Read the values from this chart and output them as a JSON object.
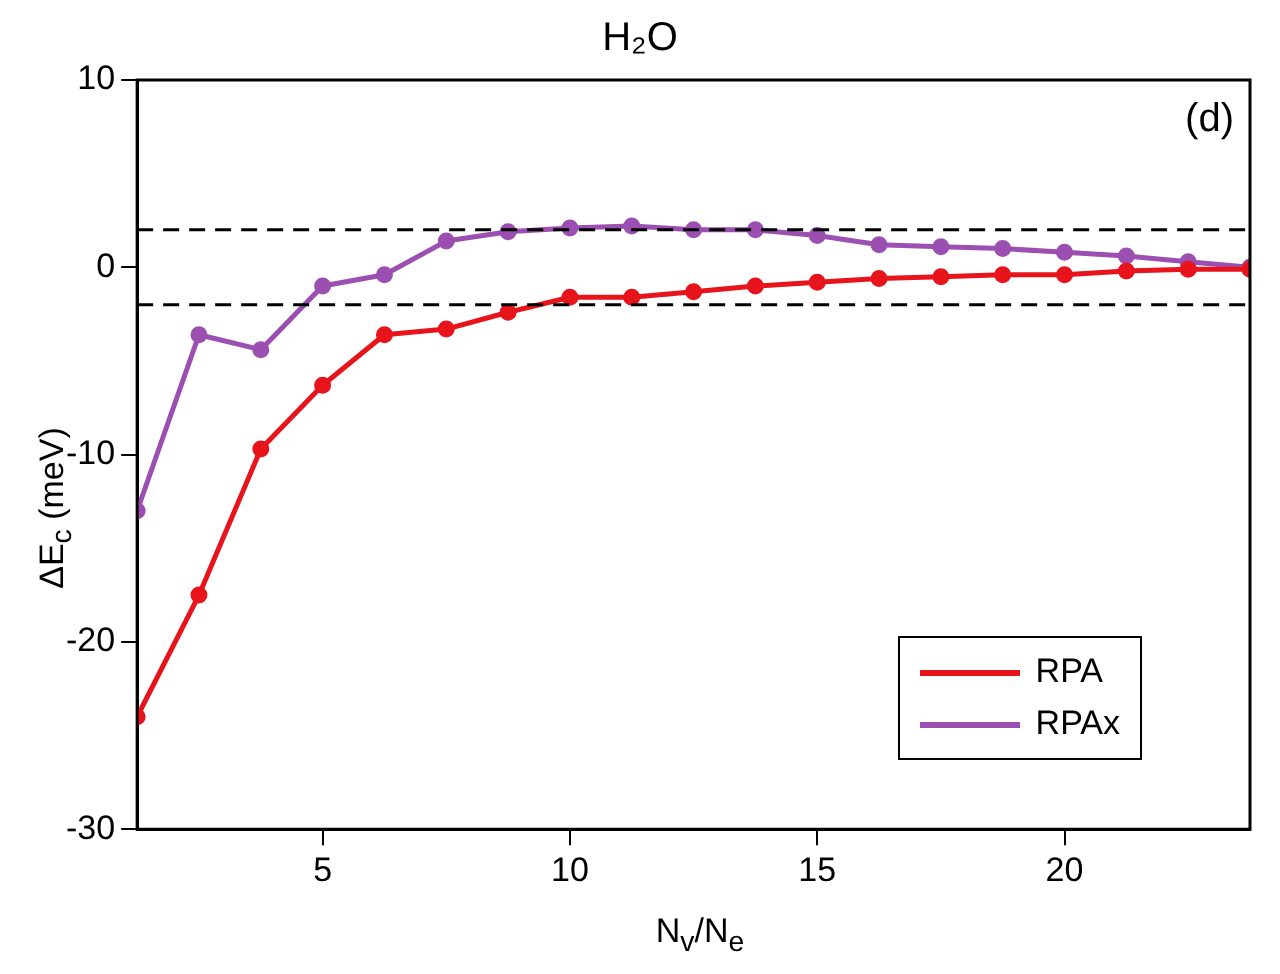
{
  "chart_data": {
    "type": "line",
    "title": "H₂O",
    "xlabel": "N$_{v}$/N$_{e}$",
    "ylabel": "ΔE$_{c}$ (meV)",
    "x": [
      1.25,
      2.5,
      3.75,
      5,
      6.25,
      7.5,
      8.75,
      10,
      11.25,
      12.5,
      13.75,
      15,
      16.25,
      17.5,
      18.75,
      20,
      21.25,
      22.5,
      23.75
    ],
    "series": [
      {
        "name": "RPA",
        "color": "#e8141c",
        "values": [
          -24,
          -17.5,
          -9.7,
          -6.3,
          -3.6,
          -3.3,
          -2.4,
          -1.6,
          -1.6,
          -1.3,
          -1.0,
          -0.8,
          -0.6,
          -0.5,
          -0.4,
          -0.4,
          -0.2,
          -0.1,
          -0.1
        ]
      },
      {
        "name": "RPAx",
        "color": "#9b4fb0",
        "values": [
          -13,
          -3.6,
          -4.4,
          -1.0,
          -0.4,
          1.4,
          1.9,
          2.1,
          2.2,
          2.0,
          2.0,
          1.7,
          1.2,
          1.1,
          1.0,
          0.8,
          0.6,
          0.3,
          0.0
        ]
      }
    ],
    "xlim": [
      1.25,
      23.75
    ],
    "xticks": [
      5,
      10,
      15,
      20
    ],
    "ylim": [
      -30,
      10
    ],
    "yticks": [
      -30,
      -20,
      -10,
      0,
      10
    ],
    "ref_lines": [
      {
        "axis": "y",
        "value": 2,
        "line_style": "dashed",
        "color": "#000000"
      },
      {
        "axis": "y",
        "value": -2,
        "line_style": "dashed",
        "color": "#000000"
      }
    ],
    "annotations": [
      "(d)"
    ],
    "grid": false,
    "legend": "bottom right",
    "marker": "circle",
    "line_style": "solid"
  }
}
